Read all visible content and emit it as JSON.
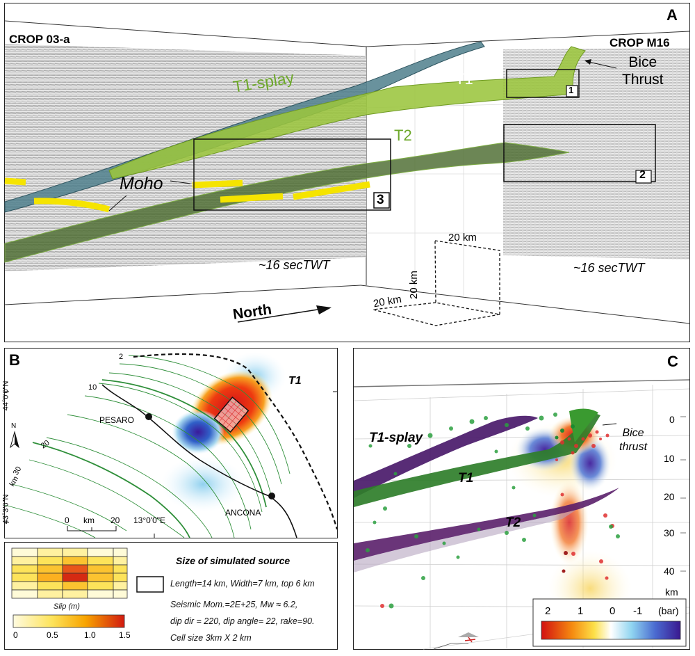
{
  "panelA": {
    "letter": "A",
    "left_profile": "CROP 03-a",
    "right_profile": "CROP M16",
    "labels": {
      "t1_splay": "T1-splay",
      "t1": "T1",
      "t2": "T2",
      "moho": "Moho",
      "bice_line1": "Bice",
      "bice_line2": "Thrust"
    },
    "boxes": [
      "1",
      "2",
      "3"
    ],
    "depth_left": "~16 secTWT",
    "depth_right": "~16 secTWT",
    "north": "North",
    "scale": {
      "x": "20 km",
      "z": "20 km",
      "y": "20 km"
    },
    "colors": {
      "moho": "#f5e400",
      "t1_fill": "#9bc53d",
      "splay_fill": "#4f7f8c",
      "t2_fill": "#4c6b30"
    }
  },
  "panelB": {
    "letter": "B",
    "fault_label": "T1",
    "cities": [
      "PESARO",
      "ANCONA"
    ],
    "lat_labels": [
      "44°0'0\"N",
      "43°3'0\"N"
    ],
    "lon_label": "13°0'0\"E",
    "contour_labels": [
      "2",
      "10",
      "20",
      "30",
      "km"
    ],
    "north_label": "N",
    "scalebar": [
      "0",
      "km",
      "20"
    ]
  },
  "legend": {
    "slip_label": "Slip (m)",
    "ticks": [
      "0",
      "0.5",
      "1.0",
      "1.5"
    ],
    "title": "Size of simulated source",
    "lines": [
      "Length=14 km, Width=7 km, top 6 km",
      "Seismic Mom.=2E+25, Mw ≈ 6.2,",
      "dip dir = 220, dip angle= 22, rake=90.",
      "Cell size 3km X 2 km"
    ]
  },
  "panelC": {
    "letter": "C",
    "labels": {
      "t1_splay": "T1-splay",
      "t1": "T1",
      "t2": "T2",
      "bice_line1": "Bice",
      "bice_line2": "thrust"
    },
    "depth_ticks": [
      "0",
      "10",
      "20",
      "30",
      "40",
      "km"
    ],
    "colorbar_ticks": [
      "2",
      "1",
      "0",
      "-1"
    ],
    "colorbar_unit": "(bar)"
  }
}
